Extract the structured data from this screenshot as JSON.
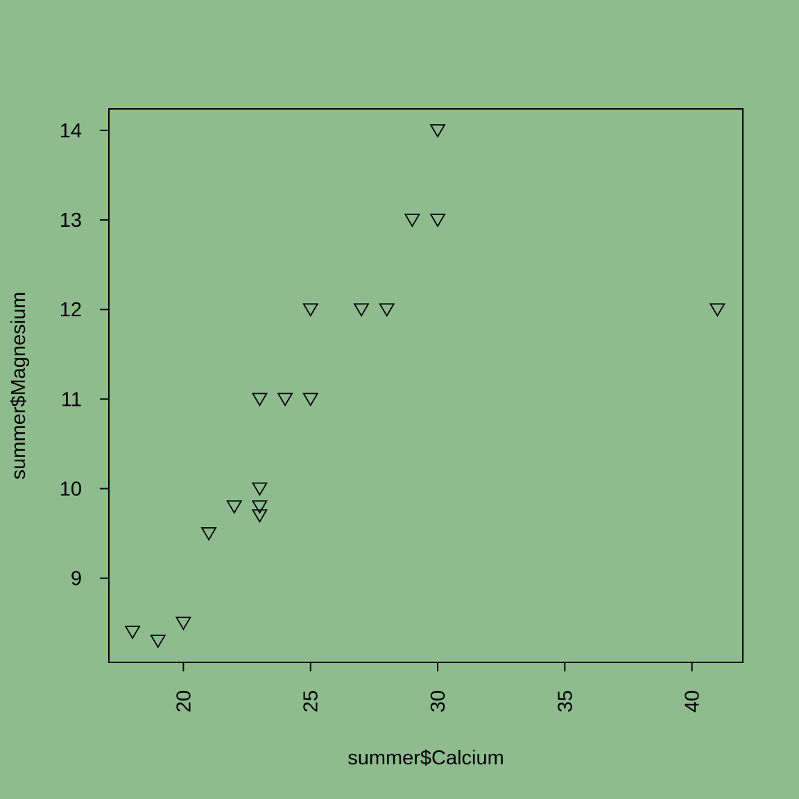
{
  "colors": {
    "background": "#8fbc8f",
    "ink": "#000000"
  },
  "chart_data": {
    "type": "scatter",
    "title": "",
    "xlabel": "summer$Calcium",
    "ylabel": "summer$Magnesium",
    "xlim": [
      17.07,
      42.0
    ],
    "ylim": [
      8.06,
      14.24
    ],
    "xticks": [
      20,
      25,
      30,
      35,
      40
    ],
    "yticks": [
      9,
      10,
      11,
      12,
      13,
      14
    ],
    "marker": "triangle-down-open",
    "grid": false,
    "legend": false,
    "points": [
      {
        "x": 18,
        "y": 8.4
      },
      {
        "x": 19,
        "y": 8.3
      },
      {
        "x": 20,
        "y": 8.5
      },
      {
        "x": 21,
        "y": 9.5
      },
      {
        "x": 22,
        "y": 9.8
      },
      {
        "x": 23,
        "y": 10.0
      },
      {
        "x": 23,
        "y": 9.8
      },
      {
        "x": 23,
        "y": 9.7
      },
      {
        "x": 23,
        "y": 11.0
      },
      {
        "x": 24,
        "y": 11.0
      },
      {
        "x": 25,
        "y": 11.0
      },
      {
        "x": 25,
        "y": 12.0
      },
      {
        "x": 27,
        "y": 12.0
      },
      {
        "x": 28,
        "y": 12.0
      },
      {
        "x": 29,
        "y": 13.0
      },
      {
        "x": 30,
        "y": 13.0
      },
      {
        "x": 30,
        "y": 14.0
      },
      {
        "x": 41,
        "y": 12.0
      }
    ]
  }
}
